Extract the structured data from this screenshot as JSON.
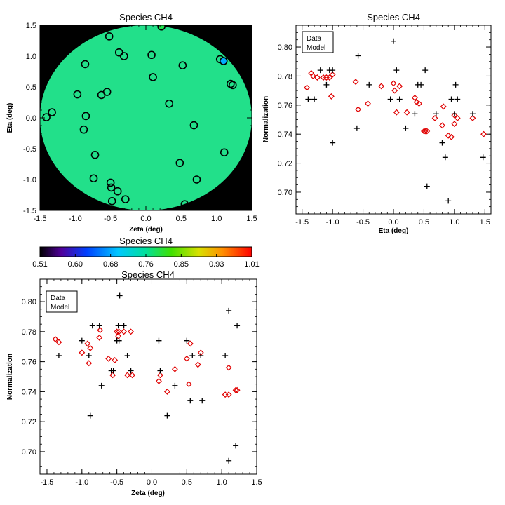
{
  "colors": {
    "data_marker": "#000000",
    "model_marker": "#e00000",
    "disk_fill": "#22e08a",
    "disk_background": "#000000"
  },
  "colorbar": {
    "title": "Species CH4",
    "colormap": "rainbow",
    "ticks": [
      "0.51",
      "0.60",
      "0.68",
      "0.76",
      "0.85",
      "0.93",
      "1.01"
    ],
    "range": [
      0.51,
      1.01
    ]
  },
  "chart_data": [
    {
      "id": "map",
      "type": "scatter",
      "title": "Species CH4",
      "xlabel": "Zeta (deg)",
      "ylabel": "Eta (deg)",
      "xlim": [
        -1.5,
        1.5
      ],
      "ylim": [
        -1.5,
        1.5
      ],
      "xticks": [
        "-1.5",
        "-1.0",
        "-0.5",
        "0.0",
        "0.5",
        "1.0",
        "1.5"
      ],
      "yticks": [
        "-1.5",
        "-1.0",
        "-0.5",
        "0.0",
        "0.5",
        "1.0",
        "1.5"
      ],
      "disk_radius": 1.5,
      "disk_value": 0.76,
      "points": [
        {
          "x": -0.52,
          "y": 1.32
        },
        {
          "x": -0.38,
          "y": 1.06
        },
        {
          "x": -0.31,
          "y": 1.0
        },
        {
          "x": 0.22,
          "y": 1.48,
          "v": 0.79
        },
        {
          "x": 0.08,
          "y": 1.02
        },
        {
          "x": -0.86,
          "y": 0.87
        },
        {
          "x": 0.1,
          "y": 0.66
        },
        {
          "x": 0.52,
          "y": 0.85
        },
        {
          "x": 1.05,
          "y": 0.95
        },
        {
          "x": 1.1,
          "y": 0.92,
          "v": 0.68
        },
        {
          "x": 1.2,
          "y": 0.55
        },
        {
          "x": 1.23,
          "y": 0.53
        },
        {
          "x": -0.97,
          "y": 0.38
        },
        {
          "x": -0.63,
          "y": 0.37
        },
        {
          "x": -0.55,
          "y": 0.42
        },
        {
          "x": 0.33,
          "y": 0.23
        },
        {
          "x": -0.85,
          "y": 0.03
        },
        {
          "x": -1.33,
          "y": 0.09
        },
        {
          "x": -1.41,
          "y": 0.01
        },
        {
          "x": -0.88,
          "y": -0.19
        },
        {
          "x": 0.68,
          "y": -0.12
        },
        {
          "x": -0.72,
          "y": -0.6
        },
        {
          "x": 1.11,
          "y": -0.56
        },
        {
          "x": 0.48,
          "y": -0.73
        },
        {
          "x": -0.74,
          "y": -0.98
        },
        {
          "x": 0.72,
          "y": -1.0
        },
        {
          "x": -0.5,
          "y": -1.05
        },
        {
          "x": -0.49,
          "y": -1.13
        },
        {
          "x": -0.4,
          "y": -1.19
        },
        {
          "x": -0.29,
          "y": -1.32
        },
        {
          "x": -0.48,
          "y": -1.35
        },
        {
          "x": 0.55,
          "y": -1.4
        }
      ]
    },
    {
      "id": "eta",
      "type": "scatter",
      "title": "Species CH4",
      "xlabel": "Eta (deg)",
      "ylabel": "Normalization",
      "xlim": [
        -1.6,
        1.6
      ],
      "ylim": [
        0.685,
        0.815
      ],
      "xticks": [
        "-1.5",
        "-1.0",
        "-0.5",
        "0.0",
        "0.5",
        "1.0",
        "1.5"
      ],
      "yticks": [
        "0.70",
        "0.72",
        "0.74",
        "0.76",
        "0.78",
        "0.80"
      ],
      "legend": {
        "position": "top-left",
        "entries": [
          "Data",
          "Model"
        ]
      },
      "series": [
        {
          "name": "Data",
          "marker": "plus",
          "points": [
            [
              -1.4,
              0.764
            ],
            [
              -1.3,
              0.764
            ],
            [
              -1.2,
              0.784
            ],
            [
              -1.1,
              0.774
            ],
            [
              -1.05,
              0.784
            ],
            [
              -1.0,
              0.784
            ],
            [
              -1.0,
              0.734
            ],
            [
              -0.6,
              0.744
            ],
            [
              -0.58,
              0.794
            ],
            [
              -0.4,
              0.774
            ],
            [
              -0.05,
              0.764
            ],
            [
              0.0,
              0.804
            ],
            [
              0.05,
              0.784
            ],
            [
              0.1,
              0.764
            ],
            [
              0.2,
              0.744
            ],
            [
              0.35,
              0.754
            ],
            [
              0.4,
              0.774
            ],
            [
              0.45,
              0.774
            ],
            [
              0.52,
              0.784
            ],
            [
              0.55,
              0.704
            ],
            [
              0.7,
              0.754
            ],
            [
              0.8,
              0.734
            ],
            [
              0.85,
              0.724
            ],
            [
              0.9,
              0.694
            ],
            [
              0.95,
              0.764
            ],
            [
              1.0,
              0.754
            ],
            [
              1.02,
              0.774
            ],
            [
              1.05,
              0.764
            ],
            [
              1.3,
              0.754
            ],
            [
              1.47,
              0.724
            ]
          ]
        },
        {
          "name": "Model",
          "marker": "diamond",
          "points": [
            [
              -1.42,
              0.772
            ],
            [
              -1.35,
              0.782
            ],
            [
              -1.32,
              0.78
            ],
            [
              -1.25,
              0.779
            ],
            [
              -1.15,
              0.779
            ],
            [
              -1.1,
              0.779
            ],
            [
              -1.05,
              0.779
            ],
            [
              -1.02,
              0.766
            ],
            [
              -1.0,
              0.781
            ],
            [
              -0.62,
              0.776
            ],
            [
              -0.58,
              0.757
            ],
            [
              -0.42,
              0.761
            ],
            [
              -0.2,
              0.773
            ],
            [
              0.0,
              0.775
            ],
            [
              0.02,
              0.77
            ],
            [
              0.05,
              0.755
            ],
            [
              0.1,
              0.773
            ],
            [
              0.22,
              0.755
            ],
            [
              0.35,
              0.765
            ],
            [
              0.38,
              0.762
            ],
            [
              0.42,
              0.761
            ],
            [
              0.5,
              0.742
            ],
            [
              0.52,
              0.742
            ],
            [
              0.55,
              0.742
            ],
            [
              0.68,
              0.751
            ],
            [
              0.8,
              0.746
            ],
            [
              0.82,
              0.759
            ],
            [
              0.9,
              0.739
            ],
            [
              0.95,
              0.738
            ],
            [
              1.0,
              0.747
            ],
            [
              1.0,
              0.753
            ],
            [
              1.05,
              0.751
            ],
            [
              1.3,
              0.751
            ],
            [
              1.48,
              0.74
            ]
          ]
        }
      ]
    },
    {
      "id": "zeta",
      "type": "scatter",
      "title": "Species CH4",
      "xlabel": "Zeta (deg)",
      "ylabel": "Normalization",
      "xlim": [
        -1.6,
        1.5
      ],
      "ylim": [
        0.685,
        0.815
      ],
      "xticks": [
        "-1.5",
        "-1.0",
        "-0.5",
        "0.0",
        "0.5",
        "1.0",
        "1.5"
      ],
      "yticks": [
        "0.70",
        "0.72",
        "0.74",
        "0.76",
        "0.78",
        "0.80"
      ],
      "legend": {
        "position": "top-left",
        "entries": [
          "Data",
          "Model"
        ]
      },
      "series": [
        {
          "name": "Data",
          "marker": "plus",
          "points": [
            [
              -1.33,
              0.764
            ],
            [
              -1.0,
              0.774
            ],
            [
              -0.9,
              0.764
            ],
            [
              -0.88,
              0.724
            ],
            [
              -0.85,
              0.784
            ],
            [
              -0.75,
              0.784
            ],
            [
              -0.72,
              0.744
            ],
            [
              -0.58,
              0.754
            ],
            [
              -0.55,
              0.754
            ],
            [
              -0.5,
              0.774
            ],
            [
              -0.48,
              0.784
            ],
            [
              -0.47,
              0.774
            ],
            [
              -0.46,
              0.804
            ],
            [
              -0.4,
              0.784
            ],
            [
              -0.35,
              0.764
            ],
            [
              -0.3,
              0.754
            ],
            [
              0.1,
              0.774
            ],
            [
              0.12,
              0.754
            ],
            [
              0.22,
              0.724
            ],
            [
              0.33,
              0.744
            ],
            [
              0.5,
              0.774
            ],
            [
              0.55,
              0.734
            ],
            [
              0.58,
              0.764
            ],
            [
              0.7,
              0.764
            ],
            [
              0.72,
              0.734
            ],
            [
              1.05,
              0.764
            ],
            [
              1.1,
              0.694
            ],
            [
              1.1,
              0.794
            ],
            [
              1.2,
              0.704
            ],
            [
              1.22,
              0.784
            ]
          ]
        },
        {
          "name": "Model",
          "marker": "diamond",
          "points": [
            [
              -1.38,
              0.775
            ],
            [
              -1.33,
              0.773
            ],
            [
              -1.0,
              0.766
            ],
            [
              -0.92,
              0.772
            ],
            [
              -0.9,
              0.759
            ],
            [
              -0.88,
              0.769
            ],
            [
              -0.75,
              0.776
            ],
            [
              -0.74,
              0.781
            ],
            [
              -0.62,
              0.762
            ],
            [
              -0.56,
              0.751
            ],
            [
              -0.53,
              0.761
            ],
            [
              -0.5,
              0.78
            ],
            [
              -0.48,
              0.777
            ],
            [
              -0.47,
              0.78
            ],
            [
              -0.4,
              0.78
            ],
            [
              -0.35,
              0.751
            ],
            [
              -0.3,
              0.78
            ],
            [
              -0.28,
              0.751
            ],
            [
              0.1,
              0.747
            ],
            [
              0.12,
              0.751
            ],
            [
              0.22,
              0.74
            ],
            [
              0.33,
              0.755
            ],
            [
              0.5,
              0.762
            ],
            [
              0.53,
              0.745
            ],
            [
              0.55,
              0.772
            ],
            [
              0.66,
              0.758
            ],
            [
              0.7,
              0.766
            ],
            [
              1.05,
              0.738
            ],
            [
              1.1,
              0.738
            ],
            [
              1.1,
              0.756
            ],
            [
              1.2,
              0.741
            ],
            [
              1.22,
              0.741
            ]
          ]
        }
      ]
    }
  ]
}
